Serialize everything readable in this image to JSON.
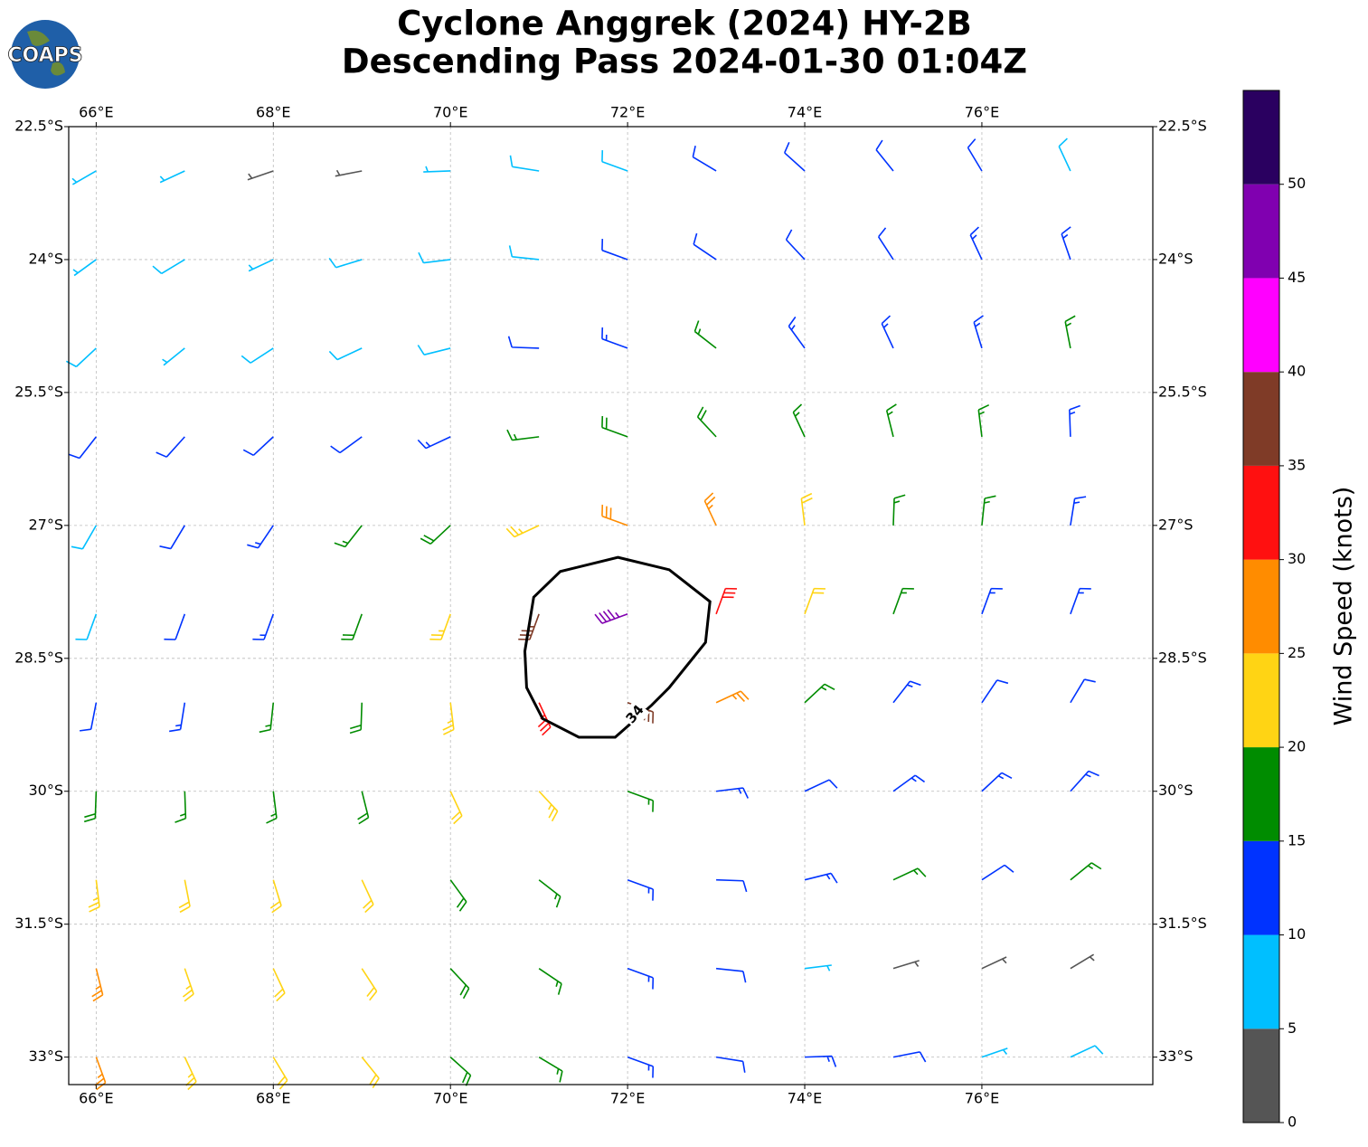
{
  "chart_data": {
    "type": "wind-barb-map",
    "logo": "COAPS",
    "title": "Cyclone Anggrek (2024) HY-2B",
    "subtitle": "Descending Pass 2024-01-30 01:04Z",
    "xlim": [
      65.69,
      77.93
    ],
    "ylim": [
      -33.31,
      -22.5
    ],
    "xticks": [
      {
        "value": 66,
        "label": "66°E"
      },
      {
        "value": 68,
        "label": "68°E"
      },
      {
        "value": 70,
        "label": "70°E"
      },
      {
        "value": 72,
        "label": "72°E"
      },
      {
        "value": 74,
        "label": "74°E"
      },
      {
        "value": 76,
        "label": "76°E"
      }
    ],
    "yticks": [
      {
        "value": -22.5,
        "label": "22.5°S"
      },
      {
        "value": -24,
        "label": "24°S"
      },
      {
        "value": -25.5,
        "label": "25.5°S"
      },
      {
        "value": -27,
        "label": "27°S"
      },
      {
        "value": -28.5,
        "label": "28.5°S"
      },
      {
        "value": -30,
        "label": "30°S"
      },
      {
        "value": -31.5,
        "label": "31.5°S"
      },
      {
        "value": -33,
        "label": "33°S"
      }
    ],
    "grid": true,
    "barbs": {
      "lon": [
        66,
        67,
        68,
        69,
        70,
        71,
        72,
        73,
        74,
        75,
        76,
        77
      ],
      "lat": [
        -23,
        -24,
        -25,
        -26,
        -27,
        -28,
        -29,
        -30,
        -31,
        -32,
        -33
      ],
      "speed": [
        [
          7,
          6,
          3,
          3,
          6,
          8,
          9,
          12,
          12,
          12,
          12,
          9
        ],
        [
          7,
          8,
          6,
          8,
          9,
          9,
          11,
          12,
          12,
          12,
          13,
          13
        ],
        [
          9,
          7,
          9,
          9,
          9,
          11,
          13,
          16,
          14,
          14,
          14,
          16
        ],
        [
          11,
          12,
          12,
          11,
          13,
          16,
          18,
          18,
          17,
          16,
          16,
          14
        ],
        [
          9,
          12,
          14,
          16,
          18,
          23,
          28,
          26,
          21,
          17,
          15,
          13
        ],
        [
          8,
          12,
          14,
          18,
          23,
          36,
          45,
          32,
          22,
          17,
          14,
          13
        ],
        [
          11,
          13,
          16,
          18,
          24,
          33,
          38,
          26,
          16,
          14,
          12,
          12
        ],
        [
          18,
          17,
          17,
          19,
          21,
          23,
          17,
          13,
          12,
          13,
          14,
          13
        ],
        [
          23,
          22,
          22,
          21,
          18,
          16,
          13,
          11,
          13,
          16,
          12,
          17
        ],
        [
          25,
          23,
          22,
          21,
          19,
          17,
          14,
          11,
          7,
          4,
          3,
          3
        ],
        [
          26,
          23,
          22,
          21,
          19,
          17,
          14,
          12,
          14,
          11,
          7,
          8
        ]
      ],
      "direction": [
        [
          240,
          245,
          251,
          259,
          268,
          279,
          290,
          301,
          312,
          321,
          329,
          335
        ],
        [
          234,
          239,
          245,
          253,
          263,
          276,
          290,
          304,
          317,
          327,
          335,
          341
        ],
        [
          227,
          231,
          237,
          245,
          256,
          272,
          290,
          308,
          324,
          335,
          343,
          349
        ],
        [
          218,
          222,
          227,
          234,
          245,
          263,
          290,
          317,
          335,
          346,
          353,
          358
        ],
        [
          210,
          211,
          214,
          218,
          227,
          245,
          290,
          335,
          353,
          2,
          6,
          9
        ],
        [
          200,
          200,
          200,
          200,
          200,
          200,
          250,
          20,
          20,
          20,
          20,
          20
        ],
        [
          191,
          189,
          186,
          182,
          173,
          155,
          110,
          65,
          47,
          38,
          34,
          31
        ],
        [
          182,
          178,
          173,
          166,
          155,
          137,
          110,
          83,
          65,
          54,
          47,
          42
        ],
        [
          173,
          169,
          163,
          155,
          144,
          128,
          110,
          92,
          76,
          65,
          57,
          51
        ],
        [
          166,
          161,
          155,
          147,
          137,
          124,
          110,
          96,
          83,
          73,
          65,
          59
        ],
        [
          160,
          155,
          149,
          141,
          132,
          121,
          110,
          99,
          88,
          79,
          71,
          65
        ]
      ]
    },
    "contour": {
      "level": 34,
      "lon": [
        71.89,
        72.47,
        72.93,
        72.88,
        72.47,
        72.27,
        71.86,
        71.45,
        71.04,
        70.86,
        70.84,
        70.94,
        71.24
      ],
      "lat": [
        -27.36,
        -27.5,
        -27.86,
        -28.32,
        -28.83,
        -29.03,
        -29.39,
        -29.39,
        -29.18,
        -28.83,
        -28.42,
        -27.81,
        -27.52
      ]
    },
    "colorbar": {
      "label": "Wind Speed (knots)",
      "levels": [
        0,
        5,
        10,
        15,
        20,
        25,
        30,
        35,
        40,
        45,
        50,
        55
      ],
      "colors": [
        "#555555",
        "#00bfff",
        "#0033ff",
        "#008c00",
        "#ffd414",
        "#ff8c00",
        "#ff1010",
        "#7f3b27",
        "#ff00ff",
        "#8000b0",
        "#2a0060"
      ],
      "ticks": [
        0,
        5,
        10,
        15,
        20,
        25,
        30,
        35,
        40,
        45,
        50
      ]
    }
  }
}
